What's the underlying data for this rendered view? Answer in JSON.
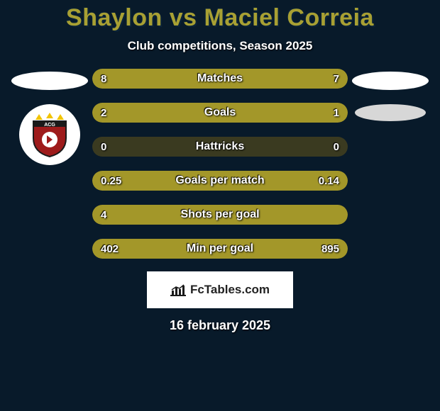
{
  "background_color": "#081a2a",
  "title": {
    "text": "Shaylon vs Maciel Correia",
    "color": "#a8a033",
    "fontsize": 34,
    "fontweight": 900
  },
  "subtitle": {
    "text": "Club competitions, Season 2025",
    "color": "#ffffff",
    "fontsize": 17
  },
  "player_left": {
    "name": "Shaylon",
    "placeholder_shape": "ellipse",
    "crest_bg": "#ffffff",
    "crest_primary": "#9e1b1b",
    "crest_secondary": "#1a1a1a",
    "crest_accent": "#f2c400"
  },
  "player_right": {
    "name": "Maciel Correia",
    "placeholder_shape": "ellipse",
    "secondary_shape": "ellipse",
    "secondary_bg": "#d7d7d7"
  },
  "bar_style": {
    "track_color": "#3a3a20",
    "fill_color": "#a39729",
    "height": 28,
    "border_radius": 14,
    "label_color": "#ffffff",
    "label_fontsize": 16,
    "value_fontsize": 15
  },
  "stats": [
    {
      "label": "Matches",
      "left_value": "8",
      "right_value": "7",
      "left_pct": 53,
      "right_pct": 47
    },
    {
      "label": "Goals",
      "left_value": "2",
      "right_value": "1",
      "left_pct": 67,
      "right_pct": 33
    },
    {
      "label": "Hattricks",
      "left_value": "0",
      "right_value": "0",
      "left_pct": 0,
      "right_pct": 0
    },
    {
      "label": "Goals per match",
      "left_value": "0.25",
      "right_value": "0.14",
      "left_pct": 64,
      "right_pct": 36
    },
    {
      "label": "Shots per goal",
      "left_value": "4",
      "right_value": "",
      "left_pct": 100,
      "right_pct": 0
    },
    {
      "label": "Min per goal",
      "left_value": "402",
      "right_value": "895",
      "left_pct": 31,
      "right_pct": 69
    }
  ],
  "footer": {
    "brand_text": "FcTables.com",
    "brand_bg": "#ffffff",
    "brand_color": "#222222",
    "icon_color": "#1a1a1a"
  },
  "date": {
    "text": "16 february 2025",
    "color": "#ffffff",
    "fontsize": 18
  }
}
